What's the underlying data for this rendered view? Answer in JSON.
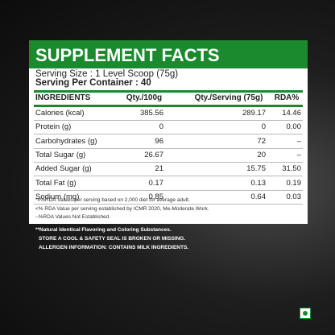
{
  "header": {
    "title": "SUPPLEMENT FACTS"
  },
  "serving": {
    "size": "Serving Size : 1 Level Scoop (75g)",
    "per_container": "Serving Per Container : 40"
  },
  "table": {
    "header": [
      "INGREDIENTS",
      "Qty./100g",
      "Qty./Serving (75g)",
      "RDA%"
    ],
    "rows": [
      [
        "Calories (kcal)",
        "385.56",
        "289.17",
        "14.46"
      ],
      [
        "Protein (g)",
        "0",
        "0",
        "0.00"
      ],
      [
        "Carbohydrates (g)",
        "96",
        "72",
        "–"
      ],
      [
        "Total Sugar (g)",
        "26.67",
        "20",
        "–"
      ],
      [
        "Added Sugar (g)",
        "21",
        "15.75",
        "31.50"
      ],
      [
        "Total Fat (g)",
        "0.17",
        "0.13",
        "0.19"
      ],
      [
        "Sodium (mg)",
        "0.85",
        "0.64",
        "0.03"
      ]
    ]
  },
  "footnotes": [
    "*#%RDA Values per serving based on 2,000 diet for average adult.",
    "<% RDA Value per serving established by ICMR 2020, Me-Moderate Work.",
    "–%RDA Values Not Established."
  ],
  "notes": [
    "**Natural Identical Flavoring and Coloring Substances.",
    "STORE A COOL & SAFETY SEAL IS BROKEN OR MISSING.",
    "ALLERGEN INFORMATION: CONTAINS MILK INGREDIENTS."
  ]
}
